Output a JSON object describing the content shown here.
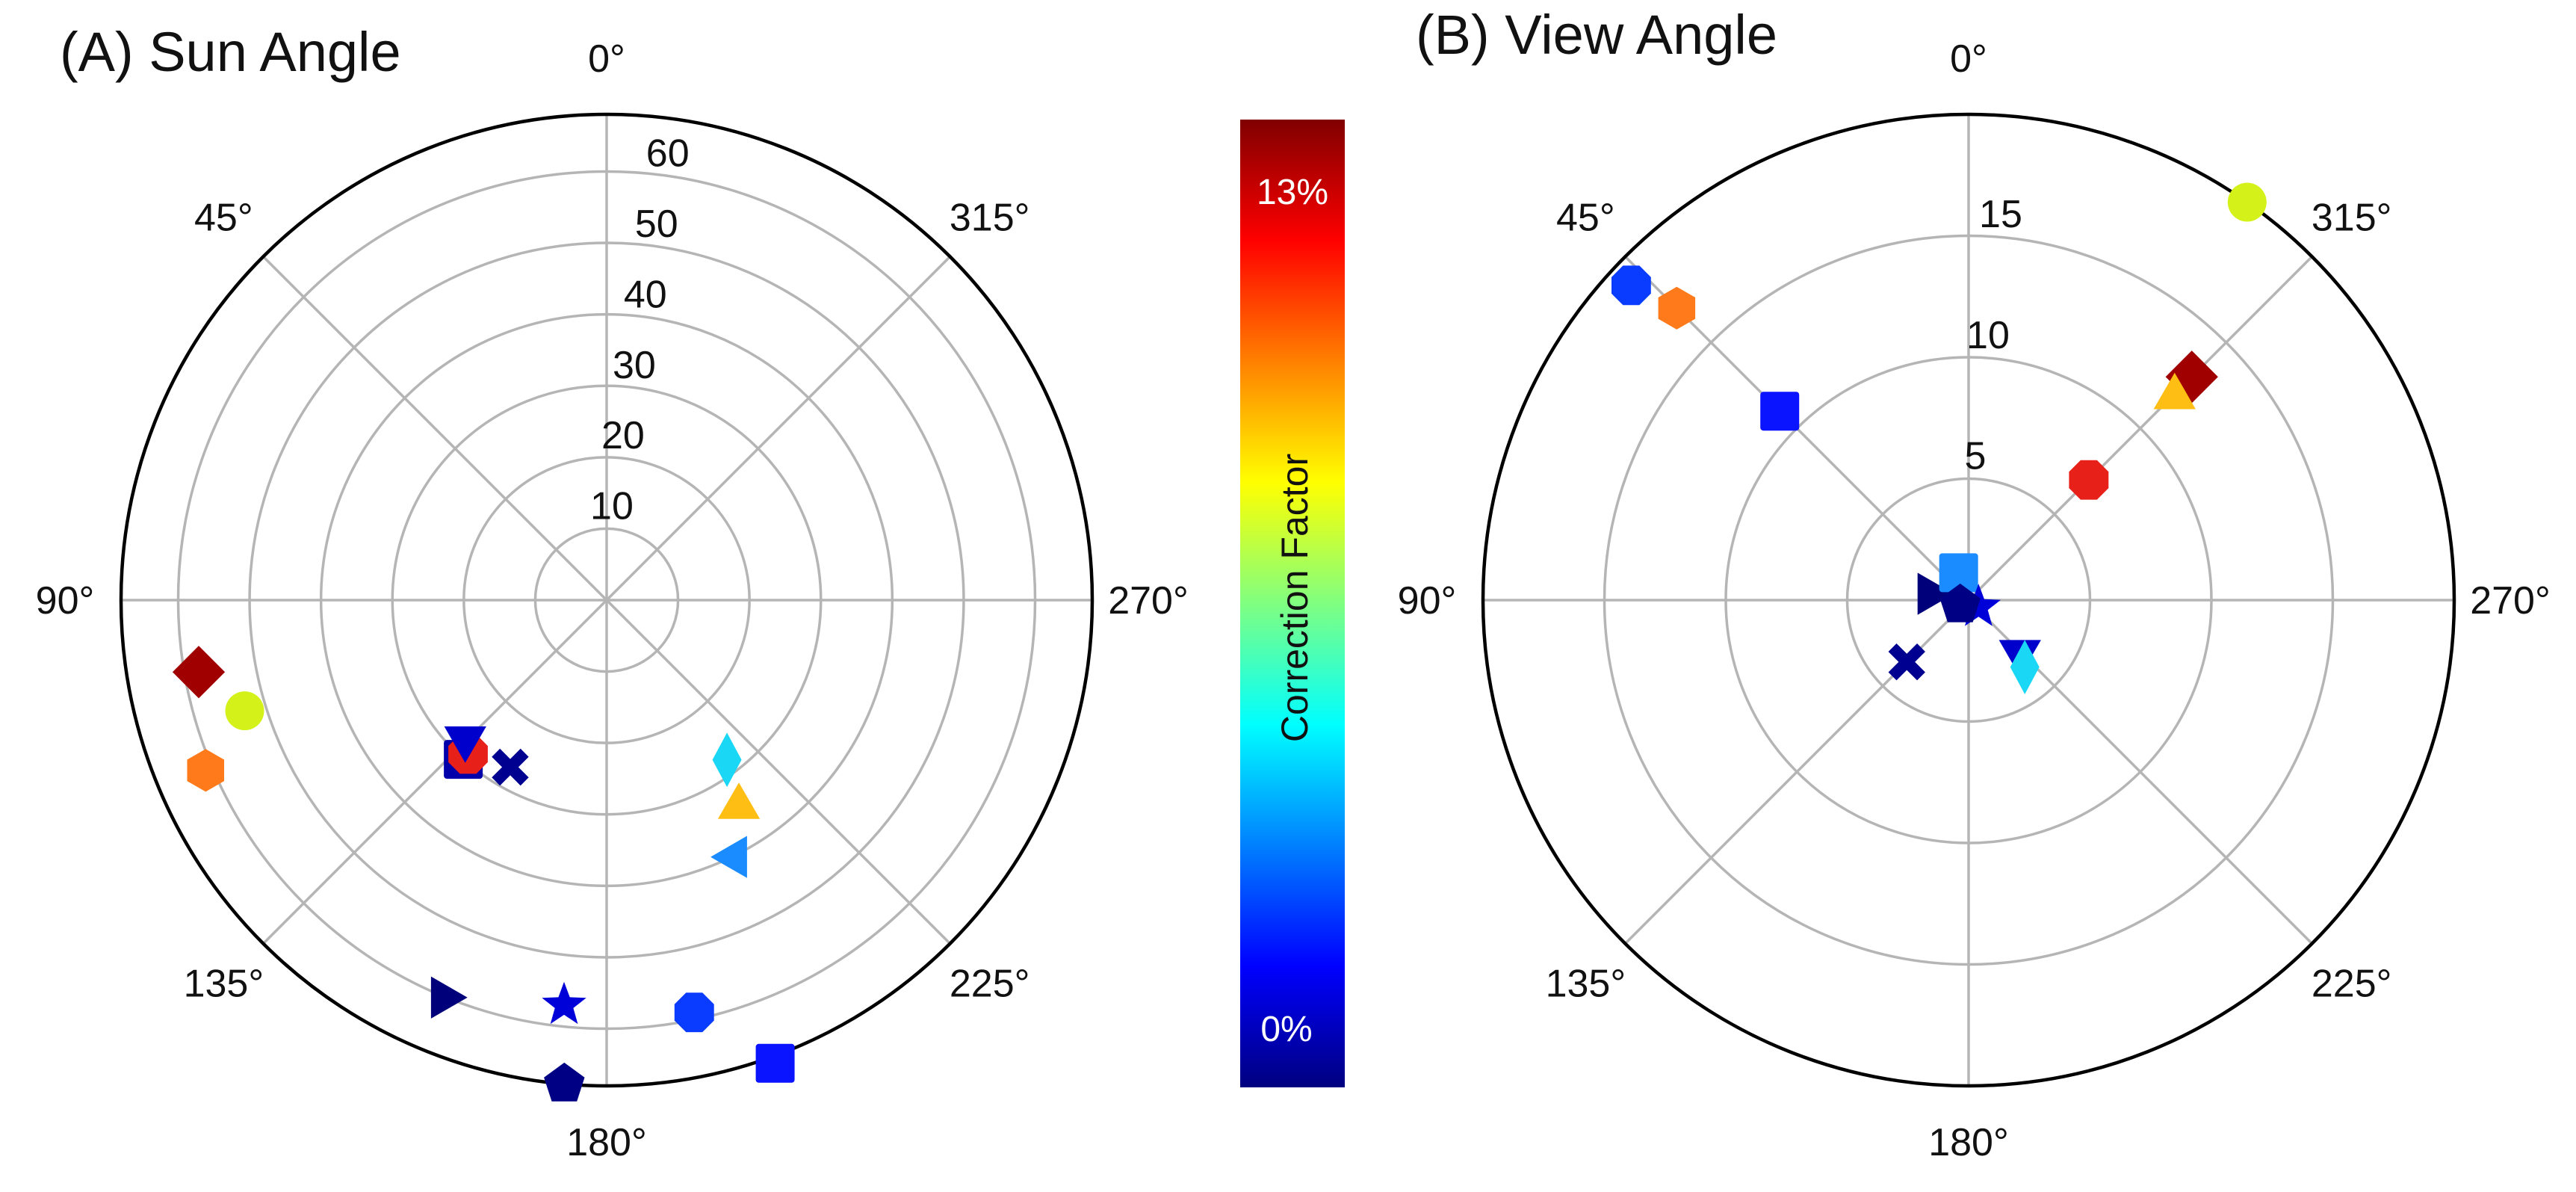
{
  "chart_data": [
    {
      "type": "polar-scatter",
      "title": "(A) Sun Angle",
      "theta_direction": "clockwise-from-top: 0° top, 90° left, 180° bottom, 270° right",
      "angle_labels": [
        "0°",
        "45°",
        "90°",
        "135°",
        "180°",
        "225°",
        "270°",
        "315°"
      ],
      "radial_ticks": [
        "10",
        "20",
        "30",
        "40",
        "50",
        "60"
      ],
      "r_range": [
        0,
        68
      ],
      "grid": true,
      "points": [
        {
          "marker": "diamond",
          "color": "#a00000",
          "theta": 100,
          "r": 58,
          "value": 14.5
        },
        {
          "marker": "circle",
          "color": "#d4f21a",
          "theta": 107,
          "r": 53,
          "value": 7.5
        },
        {
          "marker": "hexagon",
          "color": "#ff7a1a",
          "theta": 113,
          "r": 61,
          "value": 11.0
        },
        {
          "marker": "square",
          "color": "#0000aa",
          "theta": 138,
          "r": 30,
          "value": 0.8
        },
        {
          "marker": "octagon",
          "color": "#e8201a",
          "theta": 138,
          "r": 29,
          "value": 12.5
        },
        {
          "marker": "triangle-down",
          "color": "#0000cc",
          "theta": 135,
          "r": 28,
          "value": 1.2
        },
        {
          "marker": "x",
          "color": "#000090",
          "theta": 150,
          "r": 27,
          "value": 0.5
        },
        {
          "marker": "thin-diamond",
          "color": "#1ad8f5",
          "theta": 217,
          "r": 28,
          "value": 5.5
        },
        {
          "marker": "triangle-up",
          "color": "#ffbe14",
          "theta": 213,
          "r": 34,
          "value": 9.5
        },
        {
          "marker": "triangle-left",
          "color": "#1a8cff",
          "theta": 206,
          "r": 40,
          "value": 4.0
        },
        {
          "marker": "triangle-right",
          "color": "#00007a",
          "theta": 158,
          "r": 60,
          "value": 0.3
        },
        {
          "marker": "star",
          "color": "#0000d8",
          "theta": 174,
          "r": 57,
          "value": 1.5
        },
        {
          "marker": "octagon",
          "color": "#0a3cff",
          "theta": 192,
          "r": 59,
          "value": 2.0
        },
        {
          "marker": "pentagon",
          "color": "#000085",
          "theta": 175,
          "r": 68,
          "value": 0.4
        },
        {
          "marker": "square",
          "color": "#0a14ff",
          "theta": 200,
          "r": 69,
          "value": 1.8
        }
      ]
    },
    {
      "type": "polar-scatter",
      "title": "(B) View Angle",
      "theta_direction": "clockwise-from-top: 0° top, 90° left, 180° bottom, 270° right",
      "angle_labels": [
        "0°",
        "45°",
        "90°",
        "135°",
        "180°",
        "225°",
        "270°",
        "315°"
      ],
      "radial_ticks": [
        "5",
        "10",
        "15"
      ],
      "r_range": [
        0,
        20
      ],
      "grid": true,
      "points": [
        {
          "marker": "circle",
          "color": "#d4f21a",
          "theta": 325,
          "r": 20,
          "value": 7.5
        },
        {
          "marker": "diamond",
          "color": "#a00000",
          "theta": 315,
          "r": 13,
          "value": 14.5
        },
        {
          "marker": "triangle-up",
          "color": "#ffbe14",
          "theta": 315,
          "r": 12,
          "value": 9.5
        },
        {
          "marker": "octagon",
          "color": "#e8201a",
          "theta": 315,
          "r": 7,
          "value": 12.5
        },
        {
          "marker": "octagon",
          "color": "#0a3cff",
          "theta": 47,
          "r": 19,
          "value": 2.0
        },
        {
          "marker": "hexagon",
          "color": "#ff7a1a",
          "theta": 45,
          "r": 17,
          "value": 11.0
        },
        {
          "marker": "square",
          "color": "#0a14ff",
          "theta": 45,
          "r": 11,
          "value": 1.8
        },
        {
          "marker": "triangle-right",
          "color": "#00007a",
          "theta": 80,
          "r": 1.5,
          "value": 0.3
        },
        {
          "marker": "square",
          "color": "#1a8cff",
          "theta": 20,
          "r": 1.2,
          "value": 4.0
        },
        {
          "marker": "star",
          "color": "#0000d8",
          "theta": 235,
          "r": 0.5,
          "value": 1.5
        },
        {
          "marker": "pentagon",
          "color": "#000085",
          "theta": 120,
          "r": 0.4,
          "value": 0.4
        },
        {
          "marker": "x",
          "color": "#000090",
          "theta": 135,
          "r": 3.6,
          "value": 0.5
        },
        {
          "marker": "triangle-down",
          "color": "#0000cc",
          "theta": 223,
          "r": 3.1,
          "value": 1.2
        },
        {
          "marker": "thin-diamond",
          "color": "#1ad8f5",
          "theta": 220,
          "r": 3.6,
          "value": 5.5
        }
      ]
    }
  ],
  "colorbar": {
    "label": "Correction Factor",
    "tick_top": "13%",
    "tick_bottom": "0%",
    "colormap": "jet",
    "stops": [
      "#000080",
      "#0000ff",
      "#0080ff",
      "#00ffff",
      "#80ff80",
      "#ffff00",
      "#ff8000",
      "#ff0000",
      "#800000"
    ]
  }
}
